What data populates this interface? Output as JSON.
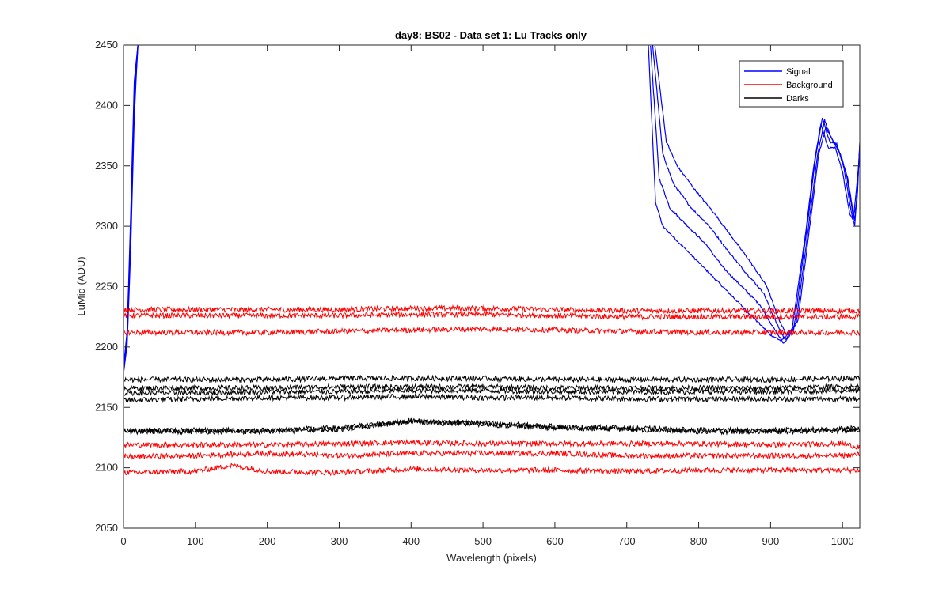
{
  "chart_data": {
    "type": "line",
    "title": "day8: BS02 - Data set 1: Lu Tracks only",
    "xlabel": "Wavelength (pixels)",
    "ylabel": "LuMid (ADU)",
    "xlim": [
      0,
      1024
    ],
    "ylim": [
      2050,
      2450
    ],
    "xticks": [
      0,
      100,
      200,
      300,
      400,
      500,
      600,
      700,
      800,
      900,
      1000
    ],
    "yticks": [
      2050,
      2100,
      2150,
      2200,
      2250,
      2300,
      2350,
      2400,
      2450
    ],
    "grid": false,
    "legend_position": "top-right",
    "legend": [
      {
        "label": "Signal",
        "color": "#0000ff"
      },
      {
        "label": "Background",
        "color": "#ff0000"
      },
      {
        "label": "Darks",
        "color": "#000000"
      }
    ],
    "series": [
      {
        "group": "Signal",
        "color": "#0000ff",
        "x": [
          0,
          5,
          10,
          15,
          20,
          730,
          740,
          750,
          775,
          800,
          825,
          850,
          875,
          900,
          915,
          930,
          950,
          960,
          970,
          980,
          990,
          1000,
          1010,
          1015,
          1024
        ],
        "y": [
          2178,
          2200,
          2280,
          2390,
          2450,
          2450,
          2320,
          2300,
          2285,
          2270,
          2255,
          2240,
          2225,
          2210,
          2205,
          2215,
          2300,
          2350,
          2385,
          2365,
          2365,
          2345,
          2310,
          2305,
          2360
        ]
      },
      {
        "group": "Signal",
        "color": "#0000ff",
        "x": [
          0,
          5,
          10,
          15,
          20,
          733,
          745,
          760,
          785,
          810,
          835,
          860,
          885,
          905,
          918,
          932,
          952,
          962,
          972,
          982,
          992,
          1002,
          1012,
          1017,
          1024
        ],
        "y": [
          2180,
          2205,
          2290,
          2400,
          2450,
          2450,
          2340,
          2315,
          2300,
          2285,
          2265,
          2250,
          2235,
          2215,
          2203,
          2214,
          2305,
          2355,
          2390,
          2370,
          2368,
          2348,
          2312,
          2300,
          2365
        ]
      },
      {
        "group": "Signal",
        "color": "#0000ff",
        "x": [
          0,
          5,
          10,
          15,
          20,
          736,
          750,
          765,
          790,
          815,
          840,
          865,
          890,
          908,
          920,
          935,
          955,
          965,
          975,
          985,
          995,
          1005,
          1015,
          1020,
          1024
        ],
        "y": [
          2182,
          2208,
          2300,
          2410,
          2450,
          2450,
          2360,
          2335,
          2315,
          2300,
          2280,
          2262,
          2245,
          2220,
          2206,
          2218,
          2310,
          2358,
          2388,
          2372,
          2362,
          2344,
          2308,
          2320,
          2368
        ]
      },
      {
        "group": "Signal",
        "color": "#0000ff",
        "x": [
          0,
          5,
          10,
          15,
          20,
          739,
          755,
          770,
          795,
          820,
          845,
          870,
          895,
          910,
          922,
          938,
          957,
          967,
          977,
          987,
          997,
          1007,
          1017,
          1021,
          1024
        ],
        "y": [
          2184,
          2212,
          2310,
          2420,
          2450,
          2450,
          2370,
          2350,
          2330,
          2312,
          2292,
          2272,
          2250,
          2225,
          2210,
          2222,
          2312,
          2360,
          2382,
          2370,
          2360,
          2340,
          2305,
          2330,
          2370
        ]
      },
      {
        "group": "Background",
        "color": "#ff0000",
        "x": [
          0,
          100,
          200,
          300,
          400,
          500,
          600,
          700,
          800,
          900,
          1000,
          1024
        ],
        "y": [
          2231,
          2231,
          2231,
          2231,
          2232,
          2232,
          2231,
          2230,
          2230,
          2230,
          2230,
          2230
        ]
      },
      {
        "group": "Background",
        "color": "#ff0000",
        "x": [
          0,
          100,
          200,
          300,
          400,
          500,
          600,
          700,
          800,
          900,
          1000,
          1024
        ],
        "y": [
          2226,
          2226,
          2226,
          2226,
          2227,
          2227,
          2226,
          2225,
          2225,
          2225,
          2225,
          2225
        ]
      },
      {
        "group": "Background",
        "color": "#ff0000",
        "x": [
          0,
          100,
          200,
          300,
          400,
          500,
          600,
          700,
          800,
          900,
          1000,
          1024
        ],
        "y": [
          2212,
          2212,
          2212,
          2213,
          2214,
          2215,
          2214,
          2213,
          2212,
          2212,
          2212,
          2212
        ]
      },
      {
        "group": "Background",
        "color": "#ff0000",
        "x": [
          0,
          100,
          200,
          300,
          400,
          500,
          600,
          700,
          800,
          900,
          1000,
          1024
        ],
        "y": [
          2119,
          2119,
          2119,
          2120,
          2121,
          2120,
          2120,
          2120,
          2120,
          2119,
          2120,
          2117
        ]
      },
      {
        "group": "Background",
        "color": "#ff0000",
        "x": [
          0,
          100,
          150,
          200,
          300,
          400,
          500,
          600,
          700,
          800,
          900,
          1000,
          1024
        ],
        "y": [
          2109,
          2110,
          2111,
          2112,
          2110,
          2112,
          2112,
          2112,
          2110,
          2110,
          2110,
          2110,
          2111
        ]
      },
      {
        "group": "Background",
        "color": "#ff0000",
        "x": [
          0,
          100,
          150,
          200,
          300,
          400,
          500,
          600,
          700,
          800,
          900,
          1000,
          1024
        ],
        "y": [
          2096,
          2097,
          2102,
          2097,
          2096,
          2099,
          2098,
          2098,
          2097,
          2098,
          2098,
          2098,
          2098
        ]
      },
      {
        "group": "Darks",
        "color": "#000000",
        "x": [
          0,
          100,
          200,
          300,
          400,
          500,
          600,
          700,
          800,
          900,
          1000,
          1024
        ],
        "y": [
          2173,
          2173,
          2173,
          2174,
          2174,
          2174,
          2173,
          2173,
          2173,
          2173,
          2174,
          2174
        ]
      },
      {
        "group": "Darks",
        "color": "#000000",
        "x": [
          0,
          100,
          200,
          300,
          400,
          500,
          600,
          700,
          800,
          900,
          1000,
          1024
        ],
        "y": [
          2166,
          2166,
          2166,
          2167,
          2167,
          2167,
          2166,
          2166,
          2166,
          2166,
          2167,
          2167
        ]
      },
      {
        "group": "Darks",
        "color": "#000000",
        "x": [
          0,
          100,
          200,
          300,
          400,
          500,
          600,
          700,
          800,
          900,
          1000,
          1024
        ],
        "y": [
          2162,
          2162,
          2163,
          2163,
          2164,
          2164,
          2163,
          2163,
          2163,
          2163,
          2164,
          2164
        ]
      },
      {
        "group": "Darks",
        "color": "#000000",
        "x": [
          0,
          100,
          200,
          300,
          400,
          500,
          600,
          700,
          800,
          900,
          1000,
          1024
        ],
        "y": [
          2156,
          2157,
          2158,
          2158,
          2159,
          2158,
          2158,
          2157,
          2157,
          2157,
          2157,
          2157
        ]
      },
      {
        "group": "Darks",
        "color": "#000000",
        "x": [
          0,
          100,
          200,
          300,
          400,
          500,
          600,
          700,
          800,
          900,
          1000,
          1024
        ],
        "y": [
          2131,
          2131,
          2131,
          2133,
          2139,
          2137,
          2134,
          2133,
          2131,
          2131,
          2132,
          2133
        ]
      },
      {
        "group": "Darks",
        "color": "#000000",
        "x": [
          0,
          100,
          200,
          300,
          400,
          500,
          600,
          700,
          800,
          900,
          1000,
          1024
        ],
        "y": [
          2130,
          2130,
          2130,
          2132,
          2138,
          2136,
          2133,
          2132,
          2130,
          2130,
          2131,
          2131
        ]
      }
    ]
  }
}
